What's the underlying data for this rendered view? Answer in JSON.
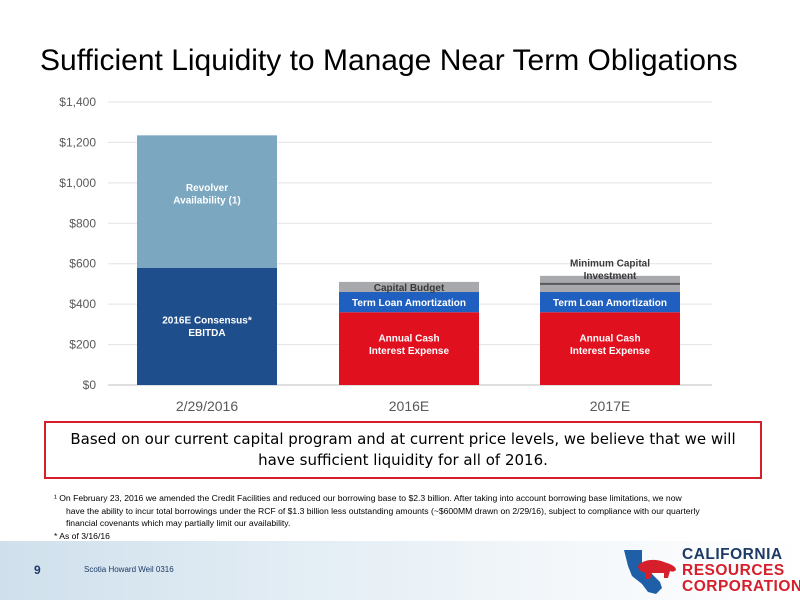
{
  "title": "Sufficient Liquidity to Manage Near Term Obligations",
  "chart_data": {
    "type": "bar",
    "stacked": true,
    "categories": [
      "2/29/2016",
      "2016E",
      "2017E"
    ],
    "y_ticks": [
      "$0",
      "$200",
      "$400",
      "$600",
      "$800",
      "$1,000",
      "$1,200",
      "$1,400"
    ],
    "ylim": [
      0,
      1400
    ],
    "grid": true,
    "segments": [
      {
        "category_index": 0,
        "name": "2016E Consensus* EBITDA",
        "label_lines": [
          "2016E Consensus*",
          "EBITDA"
        ],
        "base": 0,
        "value": 580,
        "color": "#1f4e8c",
        "label_color": "#ffffff"
      },
      {
        "category_index": 0,
        "name": "Revolver Availability (1)",
        "label_lines": [
          "Revolver",
          "Availability (1)"
        ],
        "base": 580,
        "value": 655,
        "color": "#7ba7c0",
        "label_color": "#ffffff"
      },
      {
        "category_index": 1,
        "name": "Annual Cash Interest Expense",
        "label_lines": [
          "Annual Cash",
          "Interest Expense"
        ],
        "base": 0,
        "value": 360,
        "color": "#e0101f",
        "label_color": "#ffffff"
      },
      {
        "category_index": 1,
        "name": "Term Loan Amortization",
        "label_lines": [
          "Term Loan Amortization"
        ],
        "base": 360,
        "value": 100,
        "color": "#1f5fbf",
        "label_color": "#ffffff"
      },
      {
        "category_index": 1,
        "name": "Capital Budget",
        "label_lines": [
          "Capital Budget"
        ],
        "base": 460,
        "value": 50,
        "color": "#a7a9ac",
        "label_color": "#3a3a3a"
      },
      {
        "category_index": 2,
        "name": "Annual Cash Interest Expense",
        "label_lines": [
          "Annual Cash",
          "Interest Expense"
        ],
        "base": 0,
        "value": 360,
        "color": "#e0101f",
        "label_color": "#ffffff"
      },
      {
        "category_index": 2,
        "name": "Term Loan Amortization",
        "label_lines": [
          "Term Loan Amortization"
        ],
        "base": 360,
        "value": 100,
        "color": "#1f5fbf",
        "label_color": "#ffffff"
      },
      {
        "category_index": 2,
        "name": "Minimum Capital Investment",
        "label_lines": [
          "Minimum Capital",
          "Investment"
        ],
        "base": 460,
        "value": 80,
        "color": "#a7a9ac",
        "label_color": "#3a3a3a",
        "label_outside": true
      }
    ]
  },
  "callout": "Based on our current capital program and at current price levels, we believe that we will have sufficient liquidity for all of 2016.",
  "footnotes": {
    "fn1_line1": "¹ On February 23, 2016 we amended the Credit Facilities and reduced our borrowing base to $2.3 billion.   After taking into account borrowing base limitations, we now",
    "fn1_line2": "have the ability to incur total borrowings under the RCF of $1.3 billion less outstanding amounts (~$600MM drawn on 2/29/16), subject to compliance with our quarterly",
    "fn1_line3": "financial covenants which may partially limit our availability.",
    "fn2": "* As of 3/16/16"
  },
  "footer": {
    "page_number": "9",
    "text": "Scotia Howard Weil 0316",
    "logo_line1": "CALIFORNIA",
    "logo_line2": "RESOURCES",
    "logo_line3": "CORPORATION",
    "logo_navy": "#1e3a66",
    "logo_red": "#d51f2a"
  }
}
